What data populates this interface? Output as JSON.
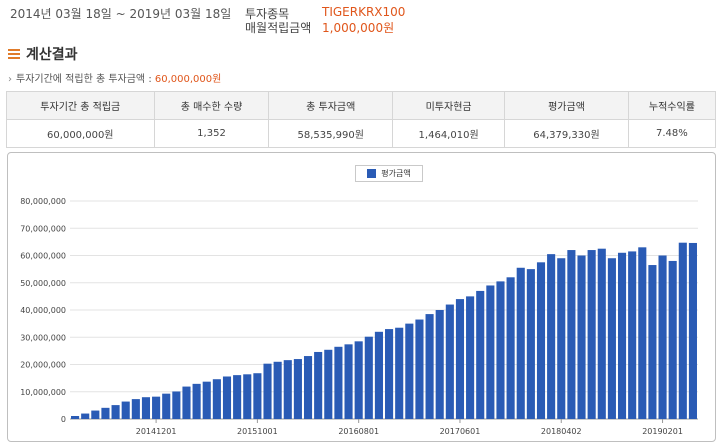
{
  "header": {
    "period": "2014년 03월 18일 ~ 2019년 03월 18일",
    "item_label": "투자종목",
    "item_value": "TIGERKRX100",
    "monthly_label": "매월적립금액",
    "monthly_value": "1,000,000원"
  },
  "section": {
    "title": "계산결과",
    "note_prefix": "투자기간에 적립한 총 투자금액 : ",
    "note_amount": "60,000,000원"
  },
  "summary": {
    "headers": [
      "투자기간 총 적립금",
      "총 매수한 수량",
      "총 투자금액",
      "미투자현금",
      "평가금액",
      "누적수익률"
    ],
    "values": [
      "60,000,000원",
      "1,352",
      "58,535,990원",
      "1,464,010원",
      "64,379,330원",
      "7.48%"
    ]
  },
  "colors": {
    "bar": "#2a5bb5",
    "accent": "#e0561b"
  },
  "chart_data": {
    "type": "bar",
    "legend": [
      "평가금액"
    ],
    "legend_position": "top-center",
    "grid": true,
    "ylim": [
      0,
      80000000
    ],
    "yticks": [
      "0",
      "10,000,000",
      "20,000,000",
      "30,000,000",
      "40,000,000",
      "50,000,000",
      "60,000,000",
      "70,000,000",
      "80,000,000"
    ],
    "x_tick_labels": [
      "20141201",
      "20151001",
      "20160801",
      "20170601",
      "20180402",
      "20190201"
    ],
    "x_tick_label_bar_index": [
      8,
      18,
      28,
      38,
      48,
      58
    ],
    "series": [
      {
        "name": "평가금액",
        "values": [
          1100000,
          2000000,
          3100000,
          4100000,
          5100000,
          6400000,
          7300000,
          8000000,
          8200000,
          9300000,
          10100000,
          11900000,
          12900000,
          13700000,
          14600000,
          15600000,
          16100000,
          16400000,
          16800000,
          20300000,
          21000000,
          21600000,
          22000000,
          23100000,
          24600000,
          25400000,
          26500000,
          27400000,
          28500000,
          30200000,
          32000000,
          33000000,
          33500000,
          35000000,
          36500000,
          38500000,
          40000000,
          42000000,
          44000000,
          45000000,
          47000000,
          49000000,
          50500000,
          52000000,
          55500000,
          55000000,
          57500000,
          60500000,
          59000000,
          62000000,
          60000000,
          62000000,
          62500000,
          59000000,
          61000000,
          61500000,
          63000000,
          56500000,
          60000000,
          58000000,
          64700000,
          64600000
        ]
      }
    ]
  }
}
